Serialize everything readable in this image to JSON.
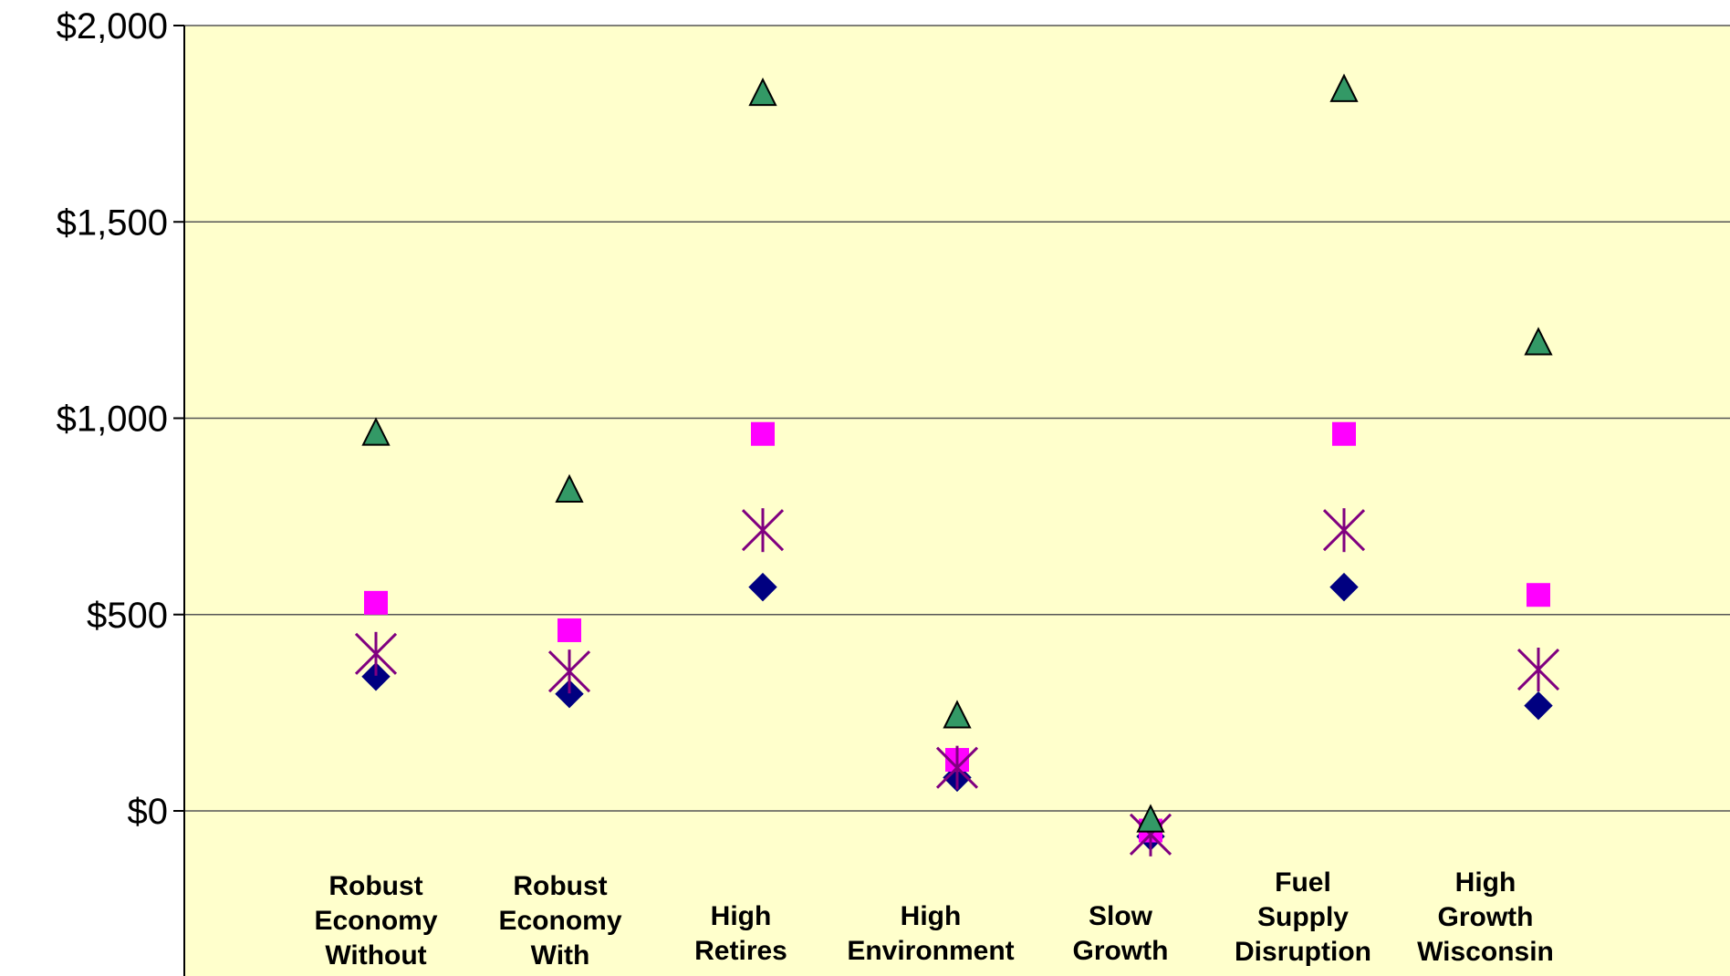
{
  "chart_data": {
    "type": "scatter",
    "title": "",
    "xlabel": "",
    "ylabel": "",
    "ylim": [
      -420,
      2000
    ],
    "yticks": [
      0,
      500,
      1000,
      1500,
      2000
    ],
    "ytick_labels": [
      "$0",
      "$500",
      "$1,000",
      "$1,500",
      "$2,000"
    ],
    "grid": true,
    "legend": "none",
    "plot_background": "#ffffcc",
    "categories": [
      [
        "Robust",
        "Economy",
        "Without"
      ],
      [
        "Robust",
        "Economy",
        "With"
      ],
      [
        "High",
        "Retires"
      ],
      [
        "High",
        "Environment"
      ],
      [
        "Slow",
        "Growth"
      ],
      [
        "Fuel",
        "Supply",
        "Disruption"
      ],
      [
        "High",
        "Growth",
        "Wisconsin"
      ]
    ],
    "series": [
      {
        "marker": "diamond",
        "color": "#000080",
        "values": [
          342,
          298,
          570,
          85,
          -65,
          570,
          268
        ]
      },
      {
        "marker": "square",
        "color": "#ff00ff",
        "values": [
          530,
          460,
          960,
          130,
          -50,
          960,
          550
        ]
      },
      {
        "marker": "asterisk",
        "color": "#800080",
        "values": [
          400,
          355,
          715,
          110,
          -60,
          715,
          360
        ]
      },
      {
        "marker": "triangle",
        "color": "#339966",
        "values": [
          965,
          820,
          1830,
          245,
          -20,
          1840,
          1195
        ]
      }
    ]
  }
}
